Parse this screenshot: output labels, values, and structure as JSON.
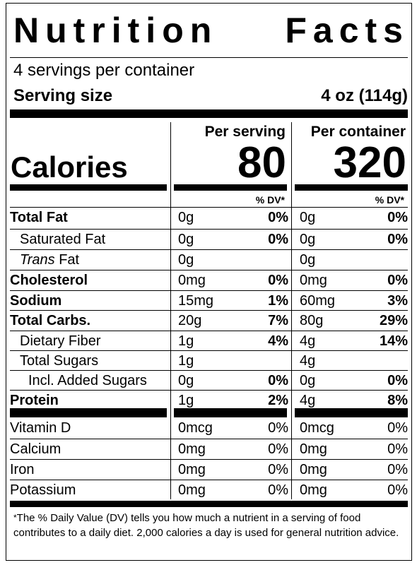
{
  "label": {
    "title_word1": "Nutrition",
    "title_word2": "Facts",
    "servings_per_container": "4 servings per container",
    "serving_size_label": "Serving size",
    "serving_size_value": "4 oz (114g)",
    "per_serving_header": "Per serving",
    "per_container_header": "Per container",
    "calories_label": "Calories",
    "calories_per_serving": "80",
    "calories_per_container": "320",
    "dv_header": "% DV*",
    "nutrients": [
      {
        "name": "Total Fat",
        "serv_amt": "0g",
        "serv_pct": "0%",
        "cont_amt": "0g",
        "cont_pct": "0%"
      },
      {
        "name": "Saturated Fat",
        "serv_amt": "0g",
        "serv_pct": "0%",
        "cont_amt": "0g",
        "cont_pct": "0%"
      },
      {
        "name_italic": "Trans",
        "name": " Fat",
        "serv_amt": "0g",
        "serv_pct": "",
        "cont_amt": "0g",
        "cont_pct": ""
      },
      {
        "name": "Cholesterol",
        "serv_amt": "0mg",
        "serv_pct": "0%",
        "cont_amt": "0mg",
        "cont_pct": "0%"
      },
      {
        "name": "Sodium",
        "serv_amt": "15mg",
        "serv_pct": "1%",
        "cont_amt": "60mg",
        "cont_pct": "3%"
      },
      {
        "name": "Total Carbs.",
        "serv_amt": "20g",
        "serv_pct": "7%",
        "cont_amt": "80g",
        "cont_pct": "29%"
      },
      {
        "name": "Dietary Fiber",
        "serv_amt": "1g",
        "serv_pct": "4%",
        "cont_amt": "4g",
        "cont_pct": "14%"
      },
      {
        "name": "Total Sugars",
        "serv_amt": "1g",
        "serv_pct": "",
        "cont_amt": "4g",
        "cont_pct": ""
      },
      {
        "name": "Incl. Added Sugars",
        "serv_amt": "0g",
        "serv_pct": "0%",
        "cont_amt": "0g",
        "cont_pct": "0%"
      },
      {
        "name": "Protein",
        "serv_amt": "1g",
        "serv_pct": "2%",
        "cont_amt": "4g",
        "cont_pct": "8%"
      }
    ],
    "vitamins": [
      {
        "name": "Vitamin D",
        "serv_amt": "0mcg",
        "serv_pct": "0%",
        "cont_amt": "0mcg",
        "cont_pct": "0%"
      },
      {
        "name": "Calcium",
        "serv_amt": "0mg",
        "serv_pct": "0%",
        "cont_amt": "0mg",
        "cont_pct": "0%"
      },
      {
        "name": "Iron",
        "serv_amt": "0mg",
        "serv_pct": "0%",
        "cont_amt": "0mg",
        "cont_pct": "0%"
      },
      {
        "name": "Potassium",
        "serv_amt": "0mg",
        "serv_pct": "0%",
        "cont_amt": "0mg",
        "cont_pct": "0%"
      }
    ],
    "footnote_symbol": "*",
    "footnote": "The % Daily Value (DV) tells you how much a nutrient in a serving of food contributes to a daily diet. 2,000 calories a day is used for general nutrition advice."
  }
}
